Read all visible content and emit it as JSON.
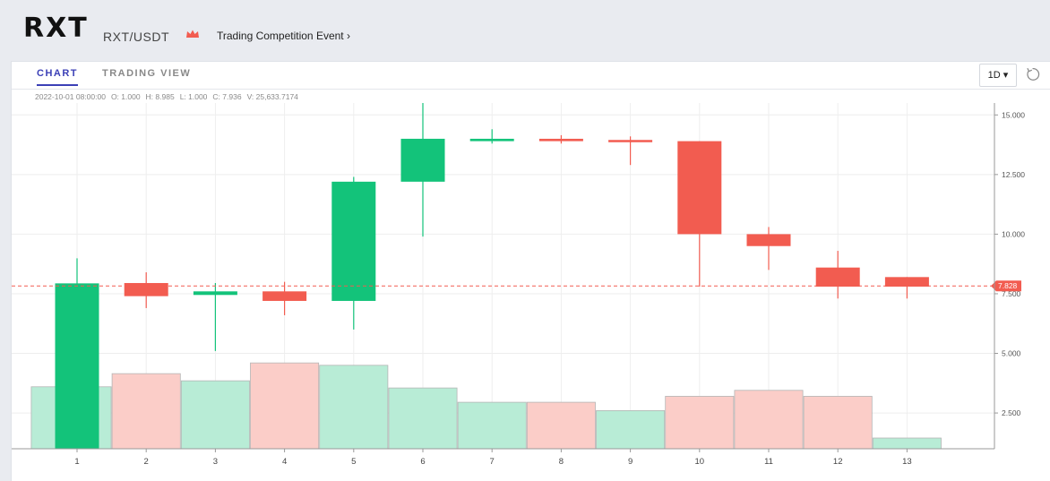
{
  "header": {
    "logo": "RXT",
    "pair": "RXT/USDT",
    "event_link": "Trading Competition Event ›",
    "crown_icon": "crown-icon"
  },
  "tabs": [
    {
      "label": "CHART",
      "active": true
    },
    {
      "label": "TRADING VIEW",
      "active": false
    }
  ],
  "toolbar": {
    "timeframe": "1D ▾",
    "reset_icon": "refresh-icon"
  },
  "ohlc": {
    "date": "2022-10-01 08:00:00",
    "open": "O: 1.000",
    "high": "H: 8.985",
    "low": "L: 1.000",
    "close": "C: 7.936",
    "volume": "V: 25,633.7174"
  },
  "colors": {
    "up": "#13c37a",
    "down": "#f25c50",
    "up_volume": "#b8ecd6",
    "down_volume": "#fbcdc8",
    "price_line": "#f25c50"
  },
  "chart_data": {
    "type": "candlestick",
    "x": [
      "1",
      "2",
      "3",
      "4",
      "5",
      "6",
      "7",
      "8",
      "9",
      "10",
      "11",
      "12",
      "13"
    ],
    "candles": [
      {
        "open": 1.0,
        "high": 8.985,
        "low": 1.0,
        "close": 7.936
      },
      {
        "open": 7.95,
        "high": 8.4,
        "low": 6.9,
        "close": 7.4
      },
      {
        "open": 7.45,
        "high": 7.95,
        "low": 5.1,
        "close": 7.6
      },
      {
        "open": 7.6,
        "high": 8.0,
        "low": 6.6,
        "close": 7.2
      },
      {
        "open": 7.2,
        "high": 12.4,
        "low": 6.0,
        "close": 12.2
      },
      {
        "open": 12.2,
        "high": 15.5,
        "low": 9.9,
        "close": 14.0
      },
      {
        "open": 13.9,
        "high": 14.4,
        "low": 13.8,
        "close": 14.0
      },
      {
        "open": 14.0,
        "high": 14.15,
        "low": 13.8,
        "close": 13.9
      },
      {
        "open": 13.95,
        "high": 14.1,
        "low": 12.9,
        "close": 13.9
      },
      {
        "open": 13.9,
        "high": 13.9,
        "low": 7.8,
        "close": 10.0
      },
      {
        "open": 10.0,
        "high": 10.3,
        "low": 8.5,
        "close": 9.5
      },
      {
        "open": 8.6,
        "high": 9.3,
        "low": 7.3,
        "close": 7.8
      },
      {
        "open": 8.2,
        "high": 8.2,
        "low": 7.3,
        "close": 7.8
      }
    ],
    "volume_bars": [
      {
        "value": 2.6,
        "direction": "up"
      },
      {
        "value": 3.15,
        "direction": "down"
      },
      {
        "value": 2.85,
        "direction": "up"
      },
      {
        "value": 3.6,
        "direction": "down"
      },
      {
        "value": 3.5,
        "direction": "up"
      },
      {
        "value": 2.55,
        "direction": "up"
      },
      {
        "value": 1.95,
        "direction": "up"
      },
      {
        "value": 1.95,
        "direction": "down"
      },
      {
        "value": 1.6,
        "direction": "up"
      },
      {
        "value": 2.2,
        "direction": "down"
      },
      {
        "value": 2.45,
        "direction": "down"
      },
      {
        "value": 2.2,
        "direction": "down"
      },
      {
        "value": 0.45,
        "direction": "up"
      }
    ],
    "y_ticks": [
      "2.500",
      "5.000",
      "7.500",
      "10.000",
      "12.500",
      "15.000"
    ],
    "y_tick_values": [
      2.5,
      5.0,
      7.5,
      10.0,
      12.5,
      15.0
    ],
    "ylim": [
      1.0,
      15.5
    ],
    "last_price": 7.828,
    "last_price_label": "7.828",
    "grid": true
  }
}
